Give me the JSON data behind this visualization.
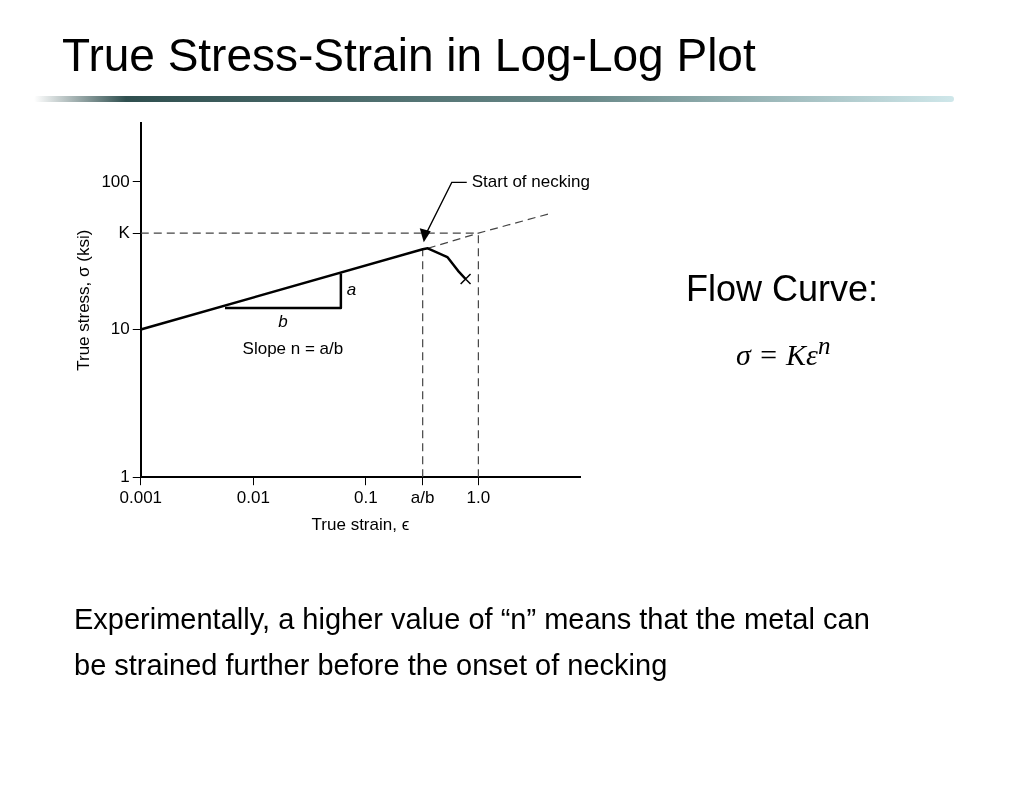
{
  "chart_data": {
    "type": "line",
    "title": "True Stress-Strain in Log-Log Plot",
    "xlabel": "True strain, ϵ",
    "ylabel": "True stress, σ (ksi)",
    "log": "xy",
    "xlim": [
      0.001,
      8
    ],
    "ylim": [
      1,
      250
    ],
    "xticks": [
      0.001,
      0.01,
      0.1,
      {
        "value": 0.32,
        "label": "a/b"
      },
      {
        "value": 1,
        "label": "1.0"
      }
    ],
    "yticks": [
      1,
      10,
      {
        "value": 45,
        "label": "K"
      },
      100
    ],
    "grid": false,
    "legend": false,
    "series": [
      {
        "color": "#000000",
        "line_style": "solid",
        "marker": "none",
        "x": [
          0.001,
          0.32,
          0.355,
          0.53,
          0.66,
          0.77
        ],
        "values": [
          10,
          35,
          35.5,
          31,
          25,
          22
        ]
      },
      {
        "type": "scatter",
        "color": "#000000",
        "marker": "cross",
        "x": [
          0.77
        ],
        "values": [
          22
        ]
      },
      {
        "color": "#444444",
        "line_style": "dashed",
        "marker": "none",
        "x": [
          0.355,
          1,
          4.3
        ],
        "values": [
          35.5,
          45,
          61
        ]
      },
      {
        "color": "#000000",
        "line_style": "solid",
        "marker": "none",
        "x": [
          0.0056,
          0.06,
          0.06
        ],
        "values": [
          14,
          14,
          24
        ]
      },
      {
        "color": "#444444",
        "line_style": "dashed",
        "marker": "none",
        "x": [
          0.32,
          0.32
        ],
        "values": [
          1,
          35
        ]
      },
      {
        "color": "#444444",
        "line_style": "dashed",
        "marker": "none",
        "x": [
          0.001,
          1
        ],
        "values": [
          45,
          45
        ]
      },
      {
        "color": "#444444",
        "line_style": "dashed",
        "marker": "none",
        "x": [
          1,
          1
        ],
        "values": [
          1,
          45
        ]
      }
    ],
    "annotations": [
      "Start of necking",
      "a",
      "b",
      "Slope n = a/b",
      "Flow Curve:",
      "σ = Kε$^{n}$",
      "Experimentally, a higher value of “n” means that the metal can be strained further before the onset of necking"
    ]
  }
}
